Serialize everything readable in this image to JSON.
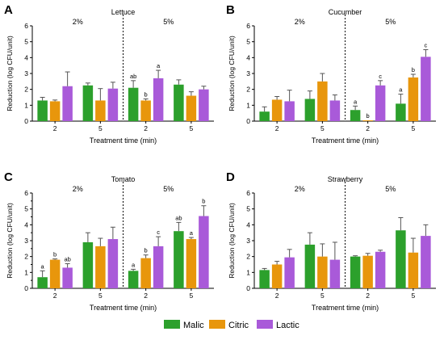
{
  "legend": [
    {
      "name": "Malic",
      "color": "#2ca02c"
    },
    {
      "name": "Citric",
      "color": "#e8960c"
    },
    {
      "name": "Lactic",
      "color": "#a95ad9"
    }
  ],
  "chart_data": [
    {
      "type": "bar",
      "letter": "A",
      "title": "Lettuce",
      "ylabel": "Reduction (log CFU/unit)",
      "xlabel": "Treatment time (min)",
      "ylim": [
        0,
        6
      ],
      "yticks": [
        0,
        1,
        2,
        3,
        4,
        5,
        6
      ],
      "groups": [
        {
          "conc": "2%",
          "time": "2",
          "values": [
            1.3,
            1.25,
            2.2
          ],
          "errors": [
            0.2,
            0.08,
            0.9
          ],
          "labels": [
            "",
            "",
            ""
          ]
        },
        {
          "conc": "2%",
          "time": "5",
          "values": [
            2.25,
            1.3,
            2.05
          ],
          "errors": [
            0.15,
            0.75,
            0.4
          ],
          "labels": [
            "",
            "",
            ""
          ]
        },
        {
          "conc": "5%",
          "time": "2",
          "values": [
            2.1,
            1.3,
            2.7
          ],
          "errors": [
            0.45,
            0.1,
            0.5
          ],
          "labels": [
            "ab",
            "b",
            "a"
          ]
        },
        {
          "conc": "5%",
          "time": "5",
          "values": [
            2.3,
            1.6,
            2.0
          ],
          "errors": [
            0.3,
            0.25,
            0.2
          ],
          "labels": [
            "",
            "",
            ""
          ]
        }
      ]
    },
    {
      "type": "bar",
      "letter": "B",
      "title": "Cucumber",
      "ylabel": "Reduction (log CFU/unit)",
      "xlabel": "Treatment time (min)",
      "ylim": [
        0,
        6
      ],
      "yticks": [
        0,
        1,
        2,
        3,
        4,
        5,
        6
      ],
      "groups": [
        {
          "conc": "2%",
          "time": "2",
          "values": [
            0.6,
            1.35,
            1.25
          ],
          "errors": [
            0.3,
            0.2,
            0.7
          ],
          "labels": [
            "",
            "",
            ""
          ]
        },
        {
          "conc": "2%",
          "time": "5",
          "values": [
            1.4,
            2.5,
            1.3
          ],
          "errors": [
            0.5,
            0.5,
            0.35
          ],
          "labels": [
            "",
            "",
            ""
          ]
        },
        {
          "conc": "5%",
          "time": "2",
          "values": [
            0.7,
            0.05,
            2.25
          ],
          "errors": [
            0.25,
            0.0,
            0.3
          ],
          "labels": [
            "a",
            "b",
            "c"
          ]
        },
        {
          "conc": "5%",
          "time": "5",
          "values": [
            1.1,
            2.75,
            4.05
          ],
          "errors": [
            0.6,
            0.2,
            0.45
          ],
          "labels": [
            "a",
            "b",
            "c"
          ]
        }
      ]
    },
    {
      "type": "bar",
      "letter": "C",
      "title": "Tomato",
      "ylabel": "Reduction (log CFU/unit)",
      "xlabel": "Treatment time (min)",
      "ylim": [
        0,
        6
      ],
      "yticks": [
        0,
        0.5,
        1,
        1.5,
        2,
        2.5,
        3,
        3.5,
        4,
        4.5,
        5,
        5.5,
        6
      ],
      "groups": [
        {
          "conc": "2%",
          "time": "2",
          "values": [
            0.7,
            1.8,
            1.3
          ],
          "errors": [
            0.4,
            0.05,
            0.25
          ],
          "labels": [
            "a",
            "b",
            "ab"
          ]
        },
        {
          "conc": "2%",
          "time": "5",
          "values": [
            2.9,
            2.65,
            3.1
          ],
          "errors": [
            0.6,
            0.5,
            0.75
          ],
          "labels": [
            "",
            "",
            ""
          ]
        },
        {
          "conc": "5%",
          "time": "2",
          "values": [
            1.1,
            1.9,
            2.65
          ],
          "errors": [
            0.1,
            0.2,
            0.6
          ],
          "labels": [
            "a",
            "b",
            "c"
          ]
        },
        {
          "conc": "5%",
          "time": "5",
          "values": [
            3.6,
            3.1,
            4.55
          ],
          "errors": [
            0.55,
            0.1,
            0.65
          ],
          "labels": [
            "ab",
            "a",
            "b"
          ]
        }
      ]
    },
    {
      "type": "bar",
      "letter": "D",
      "title": "Strawberry",
      "ylabel": "Reduction (log CFU/unit)",
      "xlabel": "Treatment time (min)",
      "ylim": [
        0,
        6
      ],
      "yticks": [
        0,
        1,
        2,
        3,
        4,
        5,
        6
      ],
      "groups": [
        {
          "conc": "2%",
          "time": "2",
          "values": [
            1.15,
            1.5,
            1.95
          ],
          "errors": [
            0.1,
            0.2,
            0.5
          ],
          "labels": [
            "",
            "",
            ""
          ]
        },
        {
          "conc": "2%",
          "time": "5",
          "values": [
            2.75,
            2.0,
            1.8
          ],
          "errors": [
            0.75,
            0.8,
            1.1
          ],
          "labels": [
            "",
            "",
            ""
          ]
        },
        {
          "conc": "5%",
          "time": "2",
          "values": [
            2.0,
            2.05,
            2.3
          ],
          "errors": [
            0.05,
            0.15,
            0.1
          ],
          "labels": [
            "",
            "",
            ""
          ]
        },
        {
          "conc": "5%",
          "time": "5",
          "values": [
            3.65,
            2.25,
            3.3
          ],
          "errors": [
            0.8,
            0.9,
            0.7
          ],
          "labels": [
            "",
            "",
            ""
          ]
        }
      ]
    }
  ]
}
